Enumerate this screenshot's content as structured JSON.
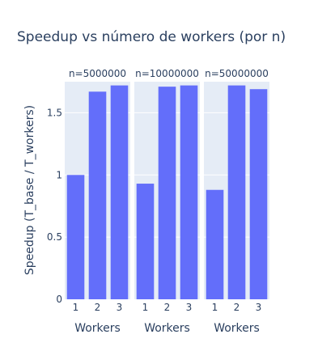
{
  "chart_data": {
    "type": "bar",
    "title": "Speedup vs número de workers (por n)",
    "ylabel": "Speedup (T_base / T_workers)",
    "ylim": [
      0,
      1.75
    ],
    "yticks": [
      0,
      0.5,
      1,
      1.5
    ],
    "ytick_labels": [
      "0",
      "0.5",
      "1",
      "1.5"
    ],
    "grid": true,
    "bar_color": "#636efa",
    "plot_bg": "#e5ecf6",
    "facets": [
      {
        "label": "n=5000000",
        "xlabel": "Workers",
        "categories": [
          "1",
          "2",
          "3"
        ],
        "values": [
          1.0,
          1.67,
          1.72
        ]
      },
      {
        "label": "n=10000000",
        "xlabel": "Workers",
        "categories": [
          "1",
          "2",
          "3"
        ],
        "values": [
          0.93,
          1.71,
          1.72
        ]
      },
      {
        "label": "n=50000000",
        "xlabel": "Workers",
        "categories": [
          "1",
          "2",
          "3"
        ],
        "values": [
          0.88,
          1.72,
          1.69
        ]
      }
    ]
  }
}
